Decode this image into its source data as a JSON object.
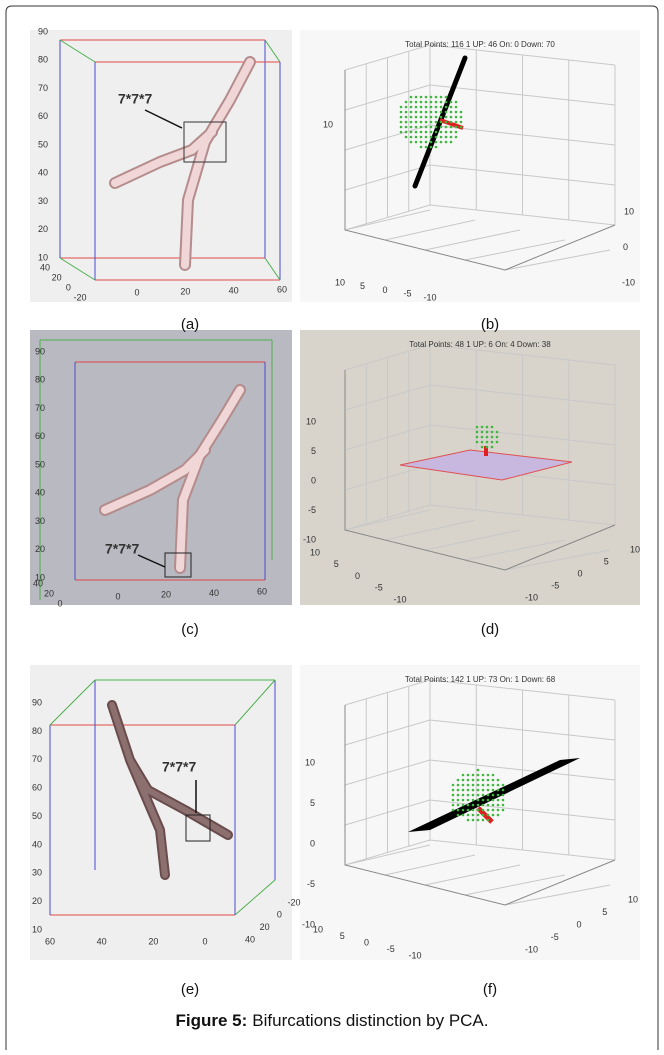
{
  "figure": {
    "caption_label": "Figure 5:",
    "caption_text": "Bifurcations distinction by PCA.",
    "panels": [
      {
        "label": "(a)",
        "annotation": "7*7*7",
        "axes": {
          "z": [
            10,
            20,
            30,
            40,
            50,
            60,
            70,
            80,
            90
          ],
          "x": [
            0,
            20,
            40,
            60
          ],
          "depth": [
            40,
            20,
            0,
            -20
          ]
        }
      },
      {
        "label": "(b)",
        "header": "Total Points: 116   1 UP: 46 On: 0 Down: 70",
        "axes": {
          "z": [
            10
          ],
          "x": [
            10,
            5,
            0,
            -5,
            -10
          ],
          "depth": [
            -10,
            0,
            10
          ]
        }
      },
      {
        "label": "(c)",
        "annotation": "7*7*7",
        "axes": {
          "z": [
            10,
            20,
            30,
            40,
            50,
            60,
            70,
            80,
            90
          ],
          "x": [
            0,
            20,
            40,
            60
          ],
          "depth": [
            40,
            20,
            0
          ]
        }
      },
      {
        "label": "(d)",
        "header": "Total Points: 48   1 UP: 6 On: 4 Down: 38",
        "axes": {
          "z": [
            -10,
            -5,
            0,
            5,
            10
          ],
          "x": [
            10,
            5,
            0,
            -5,
            -10
          ],
          "depth": [
            -10,
            -5,
            0,
            5,
            10
          ]
        }
      },
      {
        "label": "(e)",
        "annotation": "7*7*7",
        "axes": {
          "z": [
            10,
            20,
            30,
            40,
            50,
            60,
            70,
            80,
            90
          ],
          "x": [
            60,
            40,
            20,
            0
          ],
          "depth": [
            -20,
            0,
            20,
            40
          ]
        }
      },
      {
        "label": "(f)",
        "header": "Total Points: 142   1 UP: 73 On: 1 Down: 68",
        "axes": {
          "z": [
            -10,
            -5,
            0,
            5,
            10
          ],
          "x": [
            10,
            5,
            0,
            -5,
            -10
          ],
          "depth": [
            -10,
            -5,
            0,
            5,
            10
          ]
        }
      }
    ]
  }
}
